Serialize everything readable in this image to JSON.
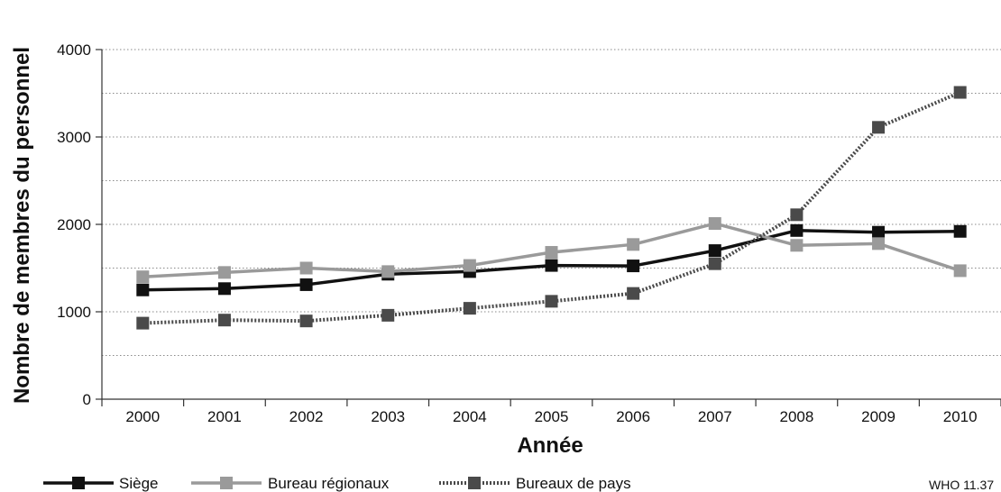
{
  "chart_data": {
    "type": "line",
    "title": "",
    "xlabel": "Année",
    "ylabel": "Nombre de membres du personnel",
    "categories": [
      "2000",
      "2001",
      "2002",
      "2003",
      "2004",
      "2005",
      "2006",
      "2007",
      "2008",
      "2009",
      "2010"
    ],
    "y_ticks": [
      "0",
      "1000",
      "2000",
      "3000",
      "4000"
    ],
    "ylim": [
      0,
      4000
    ],
    "grid": "horizontal dotted",
    "legend_position": "bottom",
    "series": [
      {
        "name": "Siège",
        "color": "#111111",
        "line_style": "solid",
        "values": [
          1250,
          1265,
          1310,
          1430,
          1460,
          1530,
          1525,
          1700,
          1930,
          1910,
          1920
        ]
      },
      {
        "name": "Bureau régionaux",
        "color": "#9a9a9a",
        "line_style": "solid",
        "values": [
          1400,
          1450,
          1500,
          1460,
          1530,
          1680,
          1770,
          2010,
          1760,
          1780,
          1470
        ]
      },
      {
        "name": "Bureaux de pays",
        "color": "#4a4a4a",
        "line_style": "dotted",
        "values": [
          870,
          905,
          895,
          960,
          1040,
          1120,
          1210,
          1550,
          2110,
          3110,
          3510
        ]
      }
    ],
    "note": "WHO 11.37"
  }
}
